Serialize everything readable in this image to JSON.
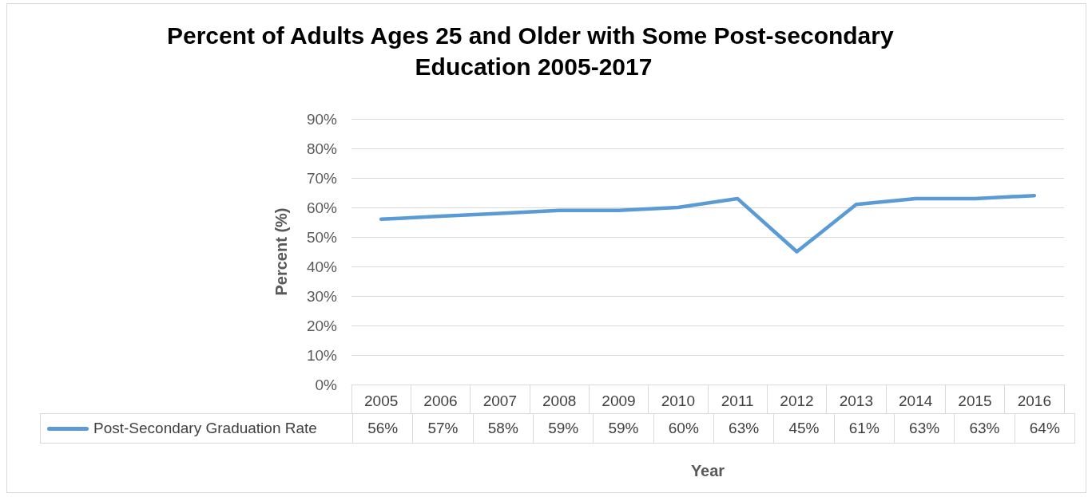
{
  "chart_data": {
    "type": "line",
    "title": "Percent of Adults Ages 25 and Older with Some Post-secondary Education 2005-2017",
    "xlabel": "Year",
    "ylabel": "Percent (%)",
    "categories": [
      "2005",
      "2006",
      "2007",
      "2008",
      "2009",
      "2010",
      "2011",
      "2012",
      "2013",
      "2014",
      "2015",
      "2016"
    ],
    "series": [
      {
        "name": "Post-Secondary Graduation Rate",
        "color": "#5b9bd5",
        "values": [
          56,
          57,
          58,
          59,
          59,
          60,
          63,
          45,
          61,
          63,
          63,
          64
        ],
        "value_labels": [
          "56%",
          "57%",
          "58%",
          "59%",
          "59%",
          "60%",
          "63%",
          "45%",
          "61%",
          "63%",
          "63%",
          "64%"
        ]
      }
    ],
    "ylim": [
      0,
      90
    ],
    "yticks": [
      {
        "value": 0,
        "label": "0%"
      },
      {
        "value": 10,
        "label": "10%"
      },
      {
        "value": 20,
        "label": "20%"
      },
      {
        "value": 30,
        "label": "30%"
      },
      {
        "value": 40,
        "label": "40%"
      },
      {
        "value": 50,
        "label": "50%"
      },
      {
        "value": 60,
        "label": "60%"
      },
      {
        "value": 70,
        "label": "70%"
      },
      {
        "value": 80,
        "label": "80%"
      },
      {
        "value": 90,
        "label": "90%"
      }
    ],
    "grid": "y",
    "legend": "bottom",
    "marker": "none",
    "line_style": "solid"
  }
}
